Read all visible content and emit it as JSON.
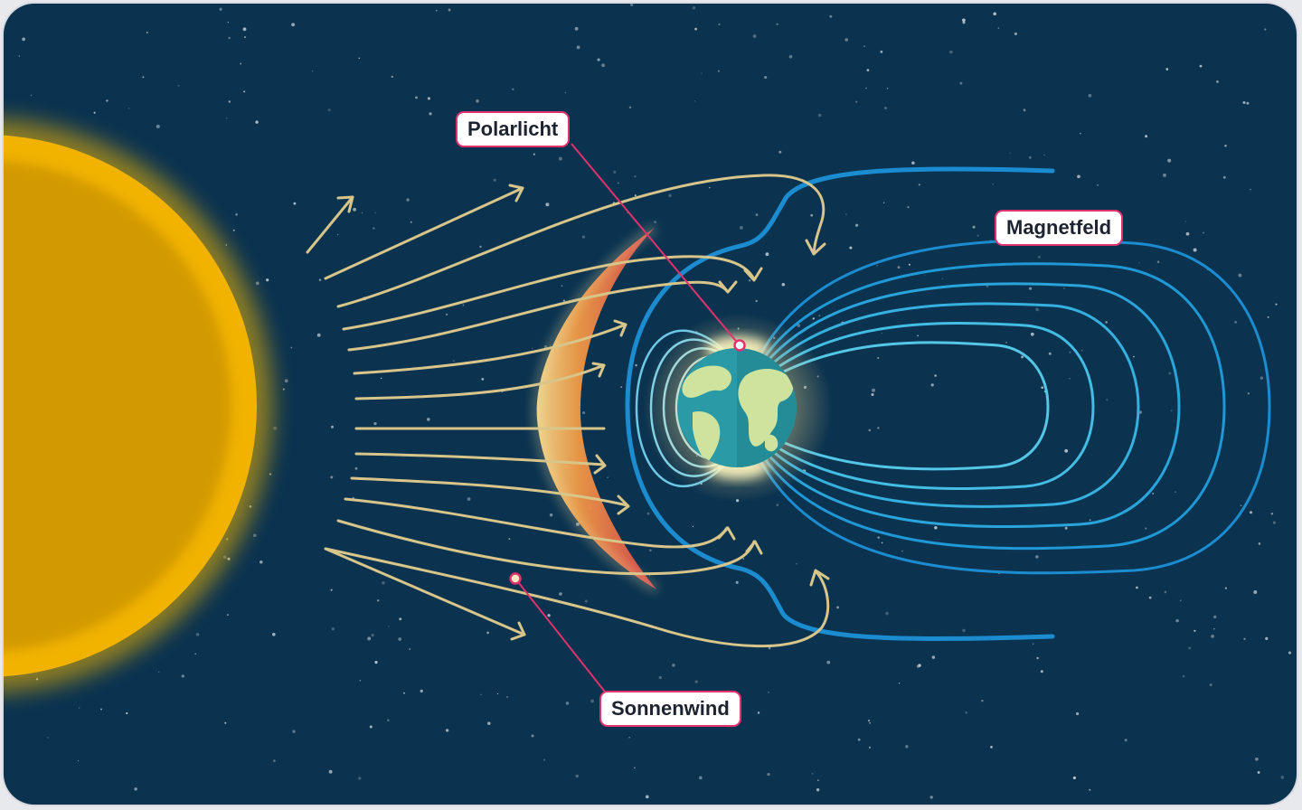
{
  "labels": {
    "aurora": "Polarlicht",
    "magnetic_field": "Magnetfeld",
    "solar_wind": "Sonnenwind"
  },
  "colors": {
    "space": "#0b3350",
    "sun_core": "#d39a06",
    "sun_rim": "#f4b800",
    "wind_lines": "#d8c58a",
    "field_outer": "#1c8cd0",
    "field_inner": "#8fd8ea",
    "bow_shock": "#e2504a",
    "label_border": "#e0326d",
    "ocean": "#2a9ba6",
    "land": "#cde39e"
  }
}
